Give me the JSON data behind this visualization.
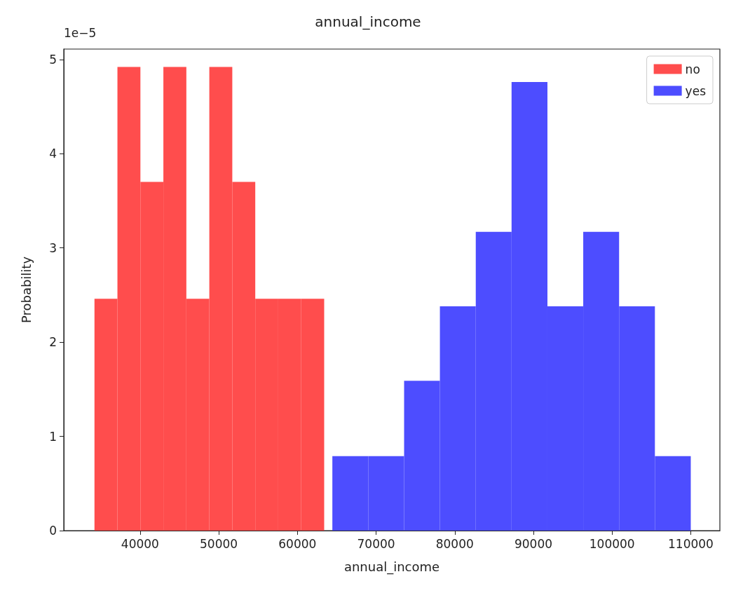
{
  "chart_data": {
    "type": "histogram",
    "title": "annual_income",
    "xlabel": "annual_income",
    "ylabel": "Probability",
    "annotations": [
      "1e−5"
    ],
    "xlim": [
      30300,
      113700
    ],
    "xticks": [
      40000,
      50000,
      60000,
      70000,
      80000,
      90000,
      100000,
      110000
    ],
    "ylim": [
      0,
      5.11
    ],
    "yticks": [
      0,
      1,
      2,
      3,
      4,
      5
    ],
    "legend": "top right",
    "bins": [
      34200,
      37120,
      40040,
      42960,
      45880,
      48800,
      51720,
      54640,
      57560,
      60480,
      63400,
      64440,
      69000,
      73560,
      78110,
      82670,
      87220,
      91780,
      96330,
      100890,
      105440,
      110000
    ],
    "series": [
      {
        "name": "no",
        "color": "#ff4d4d",
        "values": [
          2.46,
          4.92,
          3.7,
          4.92,
          2.46,
          4.92,
          3.7,
          2.46,
          2.46,
          2.46,
          null,
          null,
          null,
          null,
          null,
          null,
          null,
          null,
          null,
          null,
          null
        ]
      },
      {
        "name": "yes",
        "color": "#4d4dff",
        "values": [
          null,
          null,
          null,
          null,
          null,
          null,
          null,
          null,
          null,
          null,
          null,
          0.79,
          0.79,
          1.59,
          2.38,
          3.17,
          4.76,
          2.38,
          3.17,
          2.38,
          0.79
        ]
      }
    ]
  }
}
